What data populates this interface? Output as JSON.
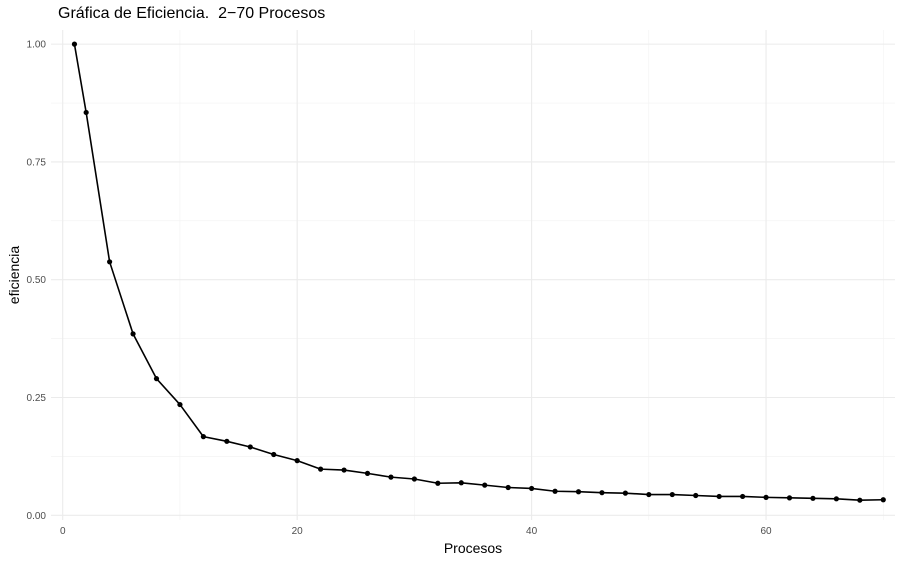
{
  "chart_data": {
    "type": "line",
    "title": "Gráfica de Eficiencia.  2−70 Procesos",
    "xlabel": "Procesos",
    "ylabel": "eficiencia",
    "xlim": [
      -1,
      71
    ],
    "ylim": [
      -0.01,
      1.03
    ],
    "x_ticks": [
      0,
      20,
      40,
      60
    ],
    "x_tick_labels": [
      "0",
      "20",
      "40",
      "60"
    ],
    "x_minor_ticks": [
      10,
      30,
      50,
      70
    ],
    "y_ticks": [
      0,
      0.25,
      0.5,
      0.75,
      1.0
    ],
    "y_tick_labels": [
      "0.00",
      "0.25",
      "0.50",
      "0.75",
      "1.00"
    ],
    "y_minor_ticks": [
      0.125,
      0.375,
      0.625,
      0.875
    ],
    "grid": true,
    "series": [
      {
        "name": "eficiencia",
        "color": "#000000",
        "x": [
          1,
          2,
          4,
          6,
          8,
          10,
          12,
          14,
          16,
          18,
          20,
          22,
          24,
          26,
          28,
          30,
          32,
          34,
          36,
          38,
          40,
          42,
          44,
          46,
          48,
          50,
          52,
          54,
          56,
          58,
          60,
          62,
          64,
          66,
          68,
          70
        ],
        "y": [
          1.0,
          0.855,
          0.538,
          0.385,
          0.29,
          0.235,
          0.167,
          0.157,
          0.145,
          0.129,
          0.116,
          0.098,
          0.096,
          0.089,
          0.081,
          0.077,
          0.068,
          0.069,
          0.064,
          0.059,
          0.057,
          0.051,
          0.05,
          0.048,
          0.047,
          0.044,
          0.044,
          0.042,
          0.04,
          0.04,
          0.038,
          0.037,
          0.036,
          0.035,
          0.032,
          0.033
        ]
      }
    ]
  }
}
